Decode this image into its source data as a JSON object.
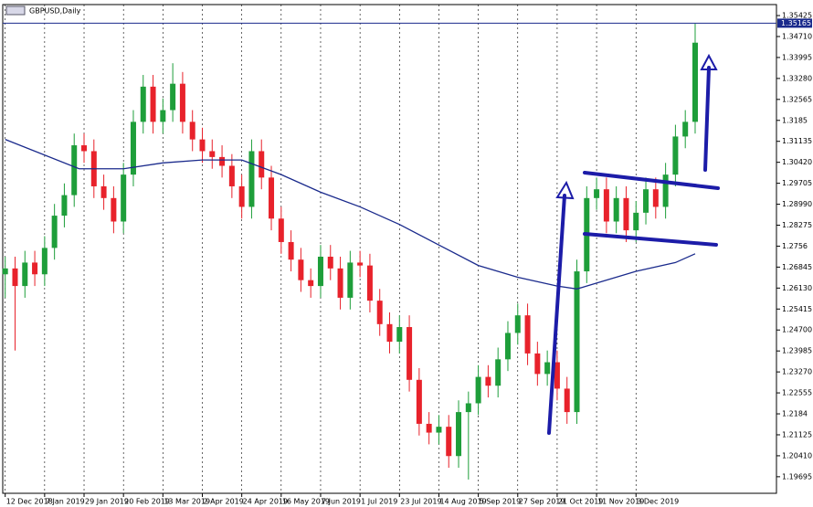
{
  "chart_data": {
    "type": "candlestick",
    "title": "GBPUSD,Daily",
    "x": [
      0,
      4,
      8,
      12,
      16,
      20,
      24,
      28,
      32,
      36,
      40,
      44,
      48,
      52,
      56,
      60,
      64,
      68,
      72,
      76,
      80,
      84,
      88,
      92,
      96,
      100,
      104,
      108,
      112,
      116,
      120,
      124,
      128,
      132,
      136,
      140,
      144,
      148,
      152,
      156,
      160,
      164,
      168,
      172,
      176,
      180,
      184,
      188,
      192,
      196,
      200,
      204,
      208,
      212,
      216,
      220,
      224,
      228,
      232,
      236,
      240,
      244,
      248,
      252,
      256,
      260,
      264,
      268,
      272,
      276,
      280
    ],
    "open": [
      1.266,
      1.268,
      1.262,
      1.27,
      1.266,
      1.275,
      1.286,
      1.293,
      1.31,
      1.308,
      1.296,
      1.292,
      1.284,
      1.3,
      1.318,
      1.33,
      1.318,
      1.322,
      1.331,
      1.318,
      1.312,
      1.308,
      1.306,
      1.303,
      1.296,
      1.289,
      1.308,
      1.299,
      1.285,
      1.277,
      1.271,
      1.264,
      1.262,
      1.272,
      1.268,
      1.258,
      1.27,
      1.269,
      1.257,
      1.249,
      1.243,
      1.248,
      1.23,
      1.215,
      1.212,
      1.214,
      1.204,
      1.219,
      1.222,
      1.231,
      1.228,
      1.237,
      1.246,
      1.252,
      1.239,
      1.232,
      1.236,
      1.227,
      1.219,
      1.267,
      1.292,
      1.295,
      1.284,
      1.292,
      1.281,
      1.287,
      1.295,
      1.289,
      1.3,
      1.313,
      1.318
    ],
    "high": [
      1.272,
      1.272,
      1.274,
      1.274,
      1.279,
      1.29,
      1.297,
      1.314,
      1.314,
      1.312,
      1.3,
      1.296,
      1.304,
      1.322,
      1.334,
      1.334,
      1.326,
      1.338,
      1.335,
      1.322,
      1.316,
      1.312,
      1.31,
      1.307,
      1.3,
      1.312,
      1.312,
      1.303,
      1.289,
      1.281,
      1.275,
      1.268,
      1.276,
      1.276,
      1.272,
      1.274,
      1.274,
      1.273,
      1.261,
      1.253,
      1.252,
      1.252,
      1.234,
      1.219,
      1.218,
      1.218,
      1.223,
      1.226,
      1.235,
      1.235,
      1.241,
      1.25,
      1.256,
      1.256,
      1.243,
      1.24,
      1.24,
      1.231,
      1.271,
      1.296,
      1.299,
      1.299,
      1.296,
      1.296,
      1.291,
      1.299,
      1.299,
      1.304,
      1.317,
      1.322,
      1.3515
    ],
    "low": [
      1.258,
      1.24,
      1.258,
      1.262,
      1.262,
      1.271,
      1.282,
      1.289,
      1.304,
      1.292,
      1.288,
      1.28,
      1.28,
      1.296,
      1.314,
      1.314,
      1.314,
      1.318,
      1.314,
      1.308,
      1.304,
      1.302,
      1.299,
      1.292,
      1.285,
      1.285,
      1.295,
      1.281,
      1.273,
      1.267,
      1.26,
      1.258,
      1.258,
      1.264,
      1.254,
      1.254,
      1.265,
      1.253,
      1.245,
      1.239,
      1.239,
      1.226,
      1.211,
      1.208,
      1.208,
      1.2,
      1.2,
      1.196,
      1.218,
      1.224,
      1.224,
      1.233,
      1.242,
      1.235,
      1.228,
      1.228,
      1.223,
      1.215,
      1.215,
      1.263,
      1.288,
      1.28,
      1.28,
      1.277,
      1.277,
      1.283,
      1.285,
      1.285,
      1.296,
      1.309,
      1.314
    ],
    "close": [
      1.268,
      1.262,
      1.27,
      1.266,
      1.275,
      1.286,
      1.293,
      1.31,
      1.308,
      1.296,
      1.292,
      1.284,
      1.3,
      1.318,
      1.33,
      1.318,
      1.322,
      1.331,
      1.318,
      1.312,
      1.308,
      1.306,
      1.303,
      1.296,
      1.289,
      1.308,
      1.299,
      1.285,
      1.277,
      1.271,
      1.264,
      1.262,
      1.272,
      1.268,
      1.258,
      1.27,
      1.269,
      1.257,
      1.249,
      1.243,
      1.248,
      1.23,
      1.215,
      1.212,
      1.214,
      1.204,
      1.219,
      1.222,
      1.231,
      1.228,
      1.237,
      1.246,
      1.252,
      1.239,
      1.232,
      1.236,
      1.227,
      1.219,
      1.267,
      1.292,
      1.295,
      1.284,
      1.292,
      1.281,
      1.287,
      1.295,
      1.289,
      1.3,
      1.313,
      1.318,
      1.345
    ],
    "up_color": "#1e9e3a",
    "down_color": "#e8222b",
    "moving_average": {
      "color": "#1a2a8c",
      "x": [
        0,
        30,
        48,
        64,
        80,
        96,
        112,
        128,
        144,
        160,
        176,
        192,
        208,
        224,
        232,
        240,
        256,
        272,
        280
      ],
      "values": [
        1.312,
        1.302,
        1.302,
        1.304,
        1.305,
        1.305,
        1.3,
        1.294,
        1.289,
        1.283,
        1.276,
        1.269,
        1.265,
        1.262,
        1.261,
        1.263,
        1.267,
        1.27,
        1.273
      ]
    },
    "current_price": 1.35165,
    "current_price_color": "#1a2a8c",
    "xlim": [
      -1,
      313
    ],
    "ylim": [
      1.1913,
      1.358
    ],
    "xticks": [
      {
        "value": 0,
        "label": "12 Dec 2018"
      },
      {
        "value": 16,
        "label": "7 Jan 2019"
      },
      {
        "value": 32,
        "label": "29 Jan 2019"
      },
      {
        "value": 48,
        "label": "20 Feb 2019"
      },
      {
        "value": 64,
        "label": "13 Mar 2019"
      },
      {
        "value": 80,
        "label": "2 Apr 2019"
      },
      {
        "value": 96,
        "label": "24 Apr 2019"
      },
      {
        "value": 112,
        "label": "16 May 2019"
      },
      {
        "value": 128,
        "label": "7 Jun 2019"
      },
      {
        "value": 144,
        "label": "1 Jul 2019"
      },
      {
        "value": 160,
        "label": "23 Jul 2019"
      },
      {
        "value": 176,
        "label": "14 Aug 2019"
      },
      {
        "value": 192,
        "label": "5 Sep 2019"
      },
      {
        "value": 208,
        "label": "27 Sep 2019"
      },
      {
        "value": 224,
        "label": "21 Oct 2019"
      },
      {
        "value": 240,
        "label": "11 Nov 2019"
      },
      {
        "value": 256,
        "label": "3 Dec 2019"
      }
    ],
    "yticks": [
      1.35425,
      {
        "value": 1.3471,
        "label": "1.34710"
      },
      1.33995,
      {
        "value": 1.3328,
        "label": "1.33280"
      },
      1.32565,
      1.3185,
      1.31135,
      {
        "value": 1.3042,
        "label": "1.30420"
      },
      1.29705,
      {
        "value": 1.2899,
        "label": "1.28990"
      },
      1.28275,
      1.2756,
      1.26845,
      {
        "value": 1.2613,
        "label": "1.26130"
      },
      1.25415,
      {
        "value": 1.247,
        "label": "1.24700"
      },
      1.23985,
      {
        "value": 1.2327,
        "label": "1.23270"
      },
      1.22555,
      1.2184,
      1.21125,
      {
        "value": 1.2041,
        "label": "1.20410"
      },
      1.19695
    ],
    "grid": "x"
  }
}
